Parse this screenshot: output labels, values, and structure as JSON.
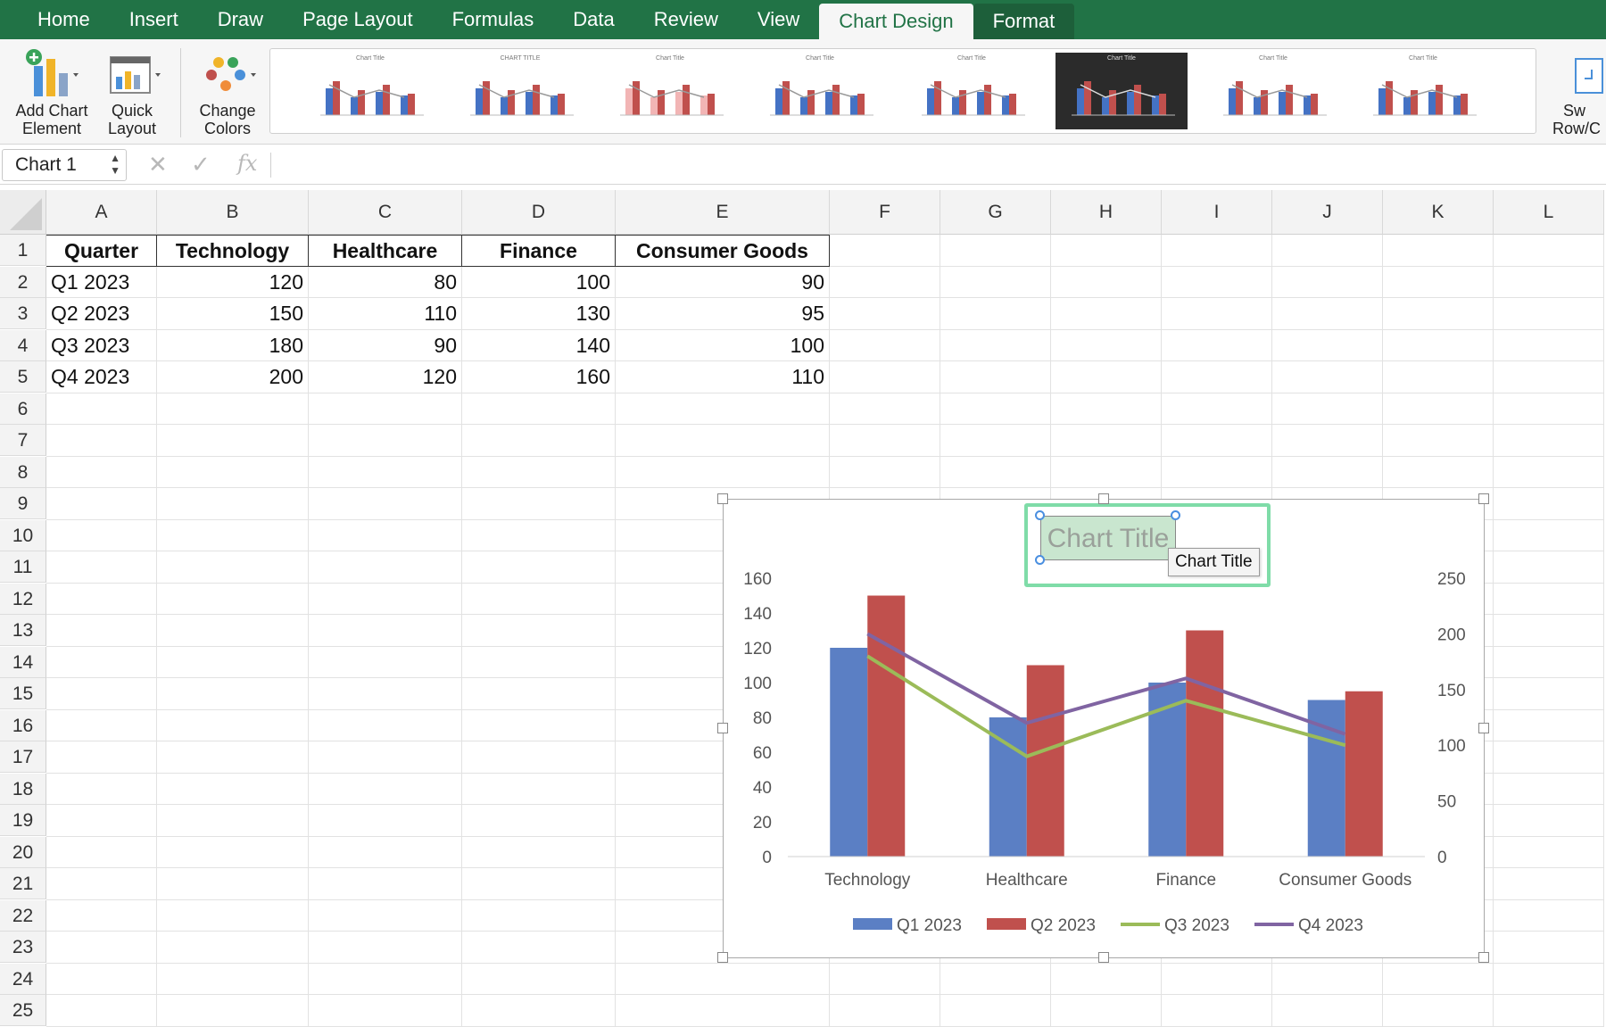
{
  "ribbon_tabs": [
    "Home",
    "Insert",
    "Draw",
    "Page Layout",
    "Formulas",
    "Data",
    "Review",
    "View",
    "Chart Design",
    "Format"
  ],
  "active_tab": "Chart Design",
  "ribbon": {
    "add_chart_element": {
      "line1": "Add Chart",
      "line2": "Element"
    },
    "quick_layout": {
      "line1": "Quick",
      "line2": "Layout"
    },
    "change_colors": {
      "line1": "Change",
      "line2": "Colors"
    },
    "switch_row_col": {
      "line1": "Sw",
      "line2": "Row/C"
    },
    "style_thumb_titles": [
      "Chart Title",
      "CHART TITLE",
      "Chart Title",
      "Chart Title",
      "Chart Title",
      "Chart Title",
      "Chart Title",
      "Chart Title"
    ]
  },
  "formula_bar": {
    "name_box": "Chart 1",
    "fx": "fx",
    "cancel": "✕",
    "enter": "✓",
    "content": ""
  },
  "columns": [
    "A",
    "B",
    "C",
    "D",
    "E",
    "F",
    "G",
    "H",
    "I",
    "J",
    "K",
    "L"
  ],
  "rows": [
    "1",
    "2",
    "3",
    "4",
    "5",
    "6",
    "7",
    "8",
    "9",
    "10",
    "11",
    "12",
    "13",
    "14",
    "15",
    "16",
    "17",
    "18",
    "19",
    "20",
    "21",
    "22",
    "23",
    "24",
    "25"
  ],
  "table": {
    "headers": [
      "Quarter",
      "Technology",
      "Healthcare",
      "Finance",
      "Consumer Goods"
    ],
    "rows": [
      [
        "Q1 2023",
        "120",
        "80",
        "100",
        "90"
      ],
      [
        "Q2 2023",
        "150",
        "110",
        "130",
        "95"
      ],
      [
        "Q3 2023",
        "180",
        "90",
        "140",
        "100"
      ],
      [
        "Q4 2023",
        "200",
        "120",
        "160",
        "110"
      ]
    ]
  },
  "chart": {
    "title_placeholder": "Chart Title",
    "tooltip": "Chart Title"
  },
  "chart_data": {
    "type": "bar",
    "categories": [
      "Technology",
      "Healthcare",
      "Finance",
      "Consumer Goods"
    ],
    "series": [
      {
        "name": "Q1 2023",
        "type": "bar",
        "axis": "primary",
        "color": "#5b7fc4",
        "values": [
          120,
          80,
          100,
          90
        ]
      },
      {
        "name": "Q2 2023",
        "type": "bar",
        "axis": "primary",
        "color": "#c0504d",
        "values": [
          150,
          110,
          130,
          95
        ]
      },
      {
        "name": "Q3 2023",
        "type": "line",
        "axis": "secondary",
        "color": "#9bbb59",
        "values": [
          180,
          90,
          140,
          100
        ]
      },
      {
        "name": "Q4 2023",
        "type": "line",
        "axis": "secondary",
        "color": "#8064a2",
        "values": [
          200,
          120,
          160,
          110
        ]
      }
    ],
    "title": "",
    "ylim": [
      0,
      160
    ],
    "yticks": [
      "0",
      "20",
      "40",
      "60",
      "80",
      "100",
      "120",
      "140",
      "160"
    ],
    "y2lim": [
      0,
      250
    ],
    "y2ticks": [
      "0",
      "50",
      "100",
      "150",
      "200",
      "250"
    ],
    "legend_position": "bottom",
    "grid": false
  }
}
